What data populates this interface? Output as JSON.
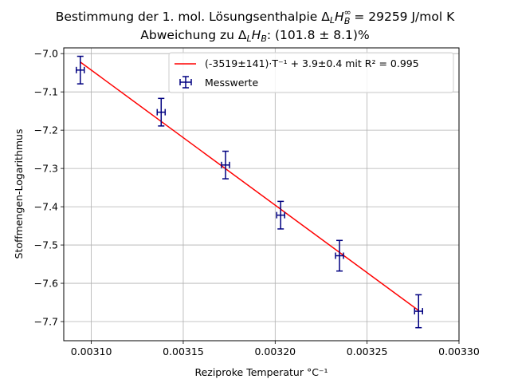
{
  "chart_data": {
    "type": "scatter",
    "title_line1": "Bestimmung der 1. mol. Lösungsenthalpie Δ_L H_B^∞ = 29259 J/mol K",
    "title_line2": "Abweichung zu Δ_L H_B: (101.8 ± 8.1)%",
    "xlabel": "Reziproke Temperatur °C⁻¹",
    "ylabel": "Stoffmengen-Logarithmus",
    "xlim": [
      0.003085,
      0.0033
    ],
    "ylim": [
      -7.75,
      -6.985
    ],
    "x_ticks": [
      0.0031,
      0.00315,
      0.0032,
      0.00325,
      0.0033
    ],
    "x_tick_labels": [
      "0.00310",
      "0.00315",
      "0.00320",
      "0.00325",
      "0.00330"
    ],
    "y_ticks": [
      -7.7,
      -7.6,
      -7.5,
      -7.4,
      -7.3,
      -7.2,
      -7.1,
      -7.0
    ],
    "y_tick_labels": [
      "−7.7",
      "−7.6",
      "−7.5",
      "−7.4",
      "−7.3",
      "−7.2",
      "−7.1",
      "−7.0"
    ],
    "grid": true,
    "legend_position": "top-right",
    "fit": {
      "label": "(-3519±141)·T⁻¹ + 3.9±0.4 mit R² = 0.995",
      "color": "#ff0000",
      "x": [
        0.003094,
        0.003278
      ],
      "y": [
        -7.022,
        -7.671
      ]
    },
    "series": [
      {
        "name": "Messwerte",
        "color": "#000080",
        "x": [
          0.003094,
          0.003138,
          0.003173,
          0.003203,
          0.003235,
          0.003278
        ],
        "y": [
          -7.043,
          -7.153,
          -7.291,
          -7.422,
          -7.528,
          -7.673
        ],
        "xerr": [
          2e-06,
          2e-06,
          2e-06,
          2e-06,
          2e-06,
          2e-06
        ],
        "yerr": [
          0.036,
          0.036,
          0.036,
          0.036,
          0.04,
          0.043
        ]
      }
    ]
  }
}
